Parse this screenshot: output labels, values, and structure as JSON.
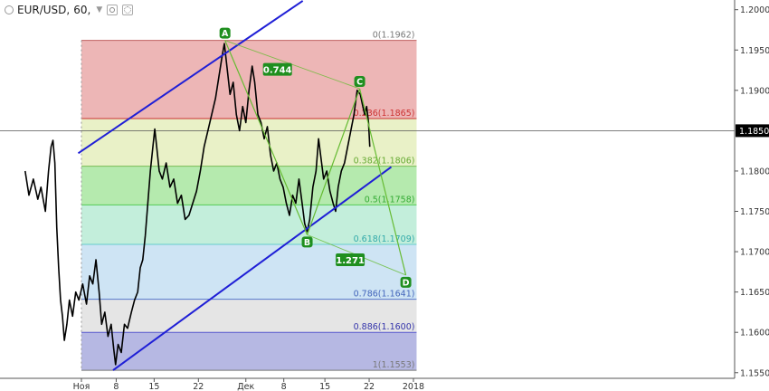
{
  "header": {
    "symbol": "EUR/USD",
    "timeframe": "60",
    "separator": ","
  },
  "colors": {
    "price": "#000000",
    "channel": "#1f1fd6",
    "pattern": "#66bb33",
    "label_bg": "#1f8f1f",
    "current_price_bg": "#000000"
  },
  "chart_data": {
    "type": "line",
    "subtype": "ohlc",
    "symbol": "EUR/USD",
    "timeframe": "60",
    "ylim": [
      1.1543,
      1.2012
    ],
    "y_ticks": [
      {
        "value": 1.2,
        "label": "1.2000"
      },
      {
        "value": 1.195,
        "label": "1.1950"
      },
      {
        "value": 1.19,
        "label": "1.1900"
      },
      {
        "value": 1.18,
        "label": "1.1800"
      },
      {
        "value": 1.175,
        "label": "1.1750"
      },
      {
        "value": 1.17,
        "label": "1.1700"
      },
      {
        "value": 1.165,
        "label": "1.1650"
      },
      {
        "value": 1.16,
        "label": "1.1600"
      },
      {
        "value": 1.155,
        "label": "1.1550"
      }
    ],
    "current_price": {
      "value": 1.185,
      "label": "1.1850"
    },
    "x_ticks": [
      {
        "t": 0.0,
        "label": "Ноя"
      },
      {
        "t": 5.5,
        "label": "8"
      },
      {
        "t": 11.5,
        "label": "15"
      },
      {
        "t": 18.5,
        "label": "22"
      },
      {
        "t": 26.0,
        "label": "Дек"
      },
      {
        "t": 32.0,
        "label": "8"
      },
      {
        "t": 38.5,
        "label": "15"
      },
      {
        "t": 45.5,
        "label": "22"
      },
      {
        "t": 52.5,
        "label": "2018"
      }
    ],
    "price_path": [
      [
        -8.9,
        1.18
      ],
      [
        -8.3,
        1.177
      ],
      [
        -7.6,
        1.179
      ],
      [
        -6.9,
        1.1765
      ],
      [
        -6.4,
        1.178
      ],
      [
        -5.7,
        1.175
      ],
      [
        -5.2,
        1.18
      ],
      [
        -4.8,
        1.183
      ],
      [
        -4.5,
        1.1838
      ],
      [
        -4.2,
        1.181
      ],
      [
        -3.9,
        1.173
      ],
      [
        -3.6,
        1.168
      ],
      [
        -3.3,
        1.164
      ],
      [
        -3.0,
        1.162
      ],
      [
        -2.7,
        1.159
      ],
      [
        -2.3,
        1.161
      ],
      [
        -1.9,
        1.164
      ],
      [
        -1.4,
        1.162
      ],
      [
        -0.9,
        1.165
      ],
      [
        -0.4,
        1.164
      ],
      [
        0.2,
        1.166
      ],
      [
        0.8,
        1.1635
      ],
      [
        1.3,
        1.167
      ],
      [
        1.8,
        1.166
      ],
      [
        2.3,
        1.169
      ],
      [
        2.8,
        1.165
      ],
      [
        3.2,
        1.161
      ],
      [
        3.7,
        1.1625
      ],
      [
        4.2,
        1.1595
      ],
      [
        4.7,
        1.161
      ],
      [
        5.1,
        1.158
      ],
      [
        5.4,
        1.156
      ],
      [
        5.8,
        1.1585
      ],
      [
        6.3,
        1.1575
      ],
      [
        6.8,
        1.161
      ],
      [
        7.3,
        1.1605
      ],
      [
        7.9,
        1.1625
      ],
      [
        8.4,
        1.164
      ],
      [
        8.9,
        1.165
      ],
      [
        9.3,
        1.168
      ],
      [
        9.7,
        1.169
      ],
      [
        10.1,
        1.172
      ],
      [
        10.5,
        1.176
      ],
      [
        10.9,
        1.18
      ],
      [
        11.3,
        1.183
      ],
      [
        11.6,
        1.1852
      ],
      [
        11.9,
        1.183
      ],
      [
        12.3,
        1.18
      ],
      [
        12.8,
        1.179
      ],
      [
        13.4,
        1.181
      ],
      [
        14.0,
        1.178
      ],
      [
        14.6,
        1.179
      ],
      [
        15.2,
        1.176
      ],
      [
        15.8,
        1.177
      ],
      [
        16.4,
        1.174
      ],
      [
        17.0,
        1.1745
      ],
      [
        17.6,
        1.176
      ],
      [
        18.2,
        1.1775
      ],
      [
        18.8,
        1.18
      ],
      [
        19.4,
        1.183
      ],
      [
        20.0,
        1.185
      ],
      [
        20.6,
        1.187
      ],
      [
        21.2,
        1.189
      ],
      [
        21.8,
        1.192
      ],
      [
        22.2,
        1.194
      ],
      [
        22.6,
        1.1958
      ],
      [
        23.0,
        1.193
      ],
      [
        23.5,
        1.1895
      ],
      [
        24.0,
        1.191
      ],
      [
        24.5,
        1.187
      ],
      [
        25.0,
        1.185
      ],
      [
        25.5,
        1.188
      ],
      [
        26.0,
        1.186
      ],
      [
        26.5,
        1.19
      ],
      [
        27.0,
        1.193
      ],
      [
        27.4,
        1.191
      ],
      [
        27.9,
        1.187
      ],
      [
        28.4,
        1.186
      ],
      [
        28.9,
        1.184
      ],
      [
        29.4,
        1.1855
      ],
      [
        29.9,
        1.182
      ],
      [
        30.4,
        1.18
      ],
      [
        30.9,
        1.181
      ],
      [
        31.4,
        1.179
      ],
      [
        31.9,
        1.178
      ],
      [
        32.4,
        1.176
      ],
      [
        32.9,
        1.1745
      ],
      [
        33.4,
        1.177
      ],
      [
        33.9,
        1.176
      ],
      [
        34.4,
        1.179
      ],
      [
        34.9,
        1.176
      ],
      [
        35.3,
        1.1735
      ],
      [
        35.7,
        1.1725
      ],
      [
        36.1,
        1.174
      ],
      [
        36.6,
        1.178
      ],
      [
        37.1,
        1.18
      ],
      [
        37.5,
        1.184
      ],
      [
        37.9,
        1.1815
      ],
      [
        38.3,
        1.179
      ],
      [
        38.8,
        1.18
      ],
      [
        39.3,
        1.1775
      ],
      [
        39.8,
        1.176
      ],
      [
        40.2,
        1.175
      ],
      [
        40.6,
        1.178
      ],
      [
        41.1,
        1.18
      ],
      [
        41.6,
        1.181
      ],
      [
        42.1,
        1.183
      ],
      [
        42.6,
        1.185
      ],
      [
        43.1,
        1.187
      ],
      [
        43.6,
        1.19
      ],
      [
        44.1,
        1.1895
      ],
      [
        44.5,
        1.188
      ],
      [
        44.8,
        1.187
      ],
      [
        45.1,
        1.188
      ],
      [
        45.4,
        1.186
      ],
      [
        45.6,
        1.183
      ]
    ],
    "channel": {
      "upper": [
        [
          -0.5,
          1.1822
        ],
        [
          35.0,
          1.2011
        ]
      ],
      "lower": [
        [
          5.0,
          1.1553
        ],
        [
          49.0,
          1.1805
        ]
      ]
    },
    "fibonacci": {
      "t_start": 0.0,
      "t_end": 53.0,
      "levels": [
        {
          "ratio": "0",
          "price": 1.1962,
          "label": "0(1.1962)",
          "fill": "#eaa9a9",
          "line": "#c06060",
          "text": "#777777"
        },
        {
          "ratio": "0.236",
          "price": 1.1865,
          "label": "0.236(1.1865)",
          "fill": "#e5eebd",
          "line": "#cc3333",
          "text": "#cc3333"
        },
        {
          "ratio": "0.382",
          "price": 1.1806,
          "label": "0.382(1.1806)",
          "fill": "#a8e6a0",
          "line": "#77bb55",
          "text": "#66aa33"
        },
        {
          "ratio": "0.5",
          "price": 1.1758,
          "label": "0.5(1.1758)",
          "fill": "#b9ebd5",
          "line": "#55cc55",
          "text": "#33aa33"
        },
        {
          "ratio": "0.618",
          "price": 1.1709,
          "label": "0.618(1.1709)",
          "fill": "#c6dff2",
          "line": "#66cccc",
          "text": "#33aaaa"
        },
        {
          "ratio": "0.786",
          "price": 1.1641,
          "label": "0.786(1.1641)",
          "fill": "#e0e0e0",
          "line": "#5577cc",
          "text": "#4466bb"
        },
        {
          "ratio": "0.886",
          "price": 1.16,
          "label": "0.886(1.1600)",
          "fill": "#a9acde",
          "line": "#5555cc",
          "text": "#3333aa"
        },
        {
          "ratio": "1",
          "price": 1.1553,
          "label": "1(1.1553)",
          "fill": null,
          "line": "#777777",
          "text": "#777777"
        }
      ]
    },
    "pattern": {
      "points": [
        {
          "name": "A",
          "t": 22.7,
          "price": 1.1962
        },
        {
          "name": "B",
          "t": 35.7,
          "price": 1.1721
        },
        {
          "name": "C",
          "t": 44.0,
          "price": 1.1902
        },
        {
          "name": "D",
          "t": 51.3,
          "price": 1.1671
        }
      ],
      "ratios": [
        {
          "label": "0.744",
          "t": 31.0,
          "price": 1.1926
        },
        {
          "label": "1.271",
          "t": 42.5,
          "price": 1.169
        }
      ]
    }
  }
}
